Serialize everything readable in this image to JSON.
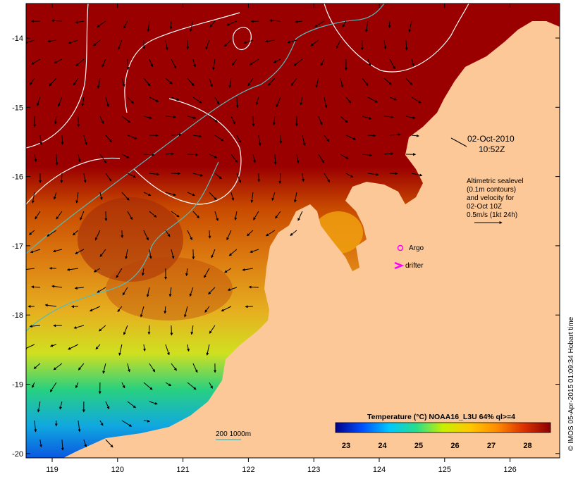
{
  "map": {
    "timestamp": {
      "date": "02-Oct-2010",
      "time": "10:52Z"
    },
    "legend_note": {
      "lines": [
        "Altimetric sealevel",
        "(0.1m contours)",
        "and velocity for",
        "02-Oct 10Z",
        "0.5m/s (1kt 24h)"
      ]
    },
    "markers": {
      "argo": "Argo",
      "drifter": "drifter"
    },
    "bathymetry_label": "200  1000m",
    "colorbar": {
      "title": "Temperature (°C) NOAA16_L3U 64% ql>=4",
      "ticks": [
        "23",
        "24",
        "25",
        "26",
        "27",
        "28"
      ],
      "colors": [
        "#00008c",
        "#0050ff",
        "#00c8ff",
        "#28dc8c",
        "#c8f000",
        "#ffc800",
        "#ff8c00",
        "#dc3200",
        "#8c0000"
      ]
    },
    "axes": {
      "x_ticks": [
        "119",
        "120",
        "121",
        "122",
        "123",
        "124",
        "125",
        "126"
      ],
      "y_ticks": [
        "-14",
        "-15",
        "-16",
        "-17",
        "-18",
        "-19",
        "-20"
      ]
    },
    "credit": "© IMOS 05-Apr-2015 01:09:34 Hobart time",
    "colors": {
      "land": "#fcc898",
      "warm_water": "#9b0000",
      "contour_white": "#ffffff",
      "bathymetry_cyan": "#55bbbb",
      "marker_magenta": "#ff00ff"
    }
  }
}
